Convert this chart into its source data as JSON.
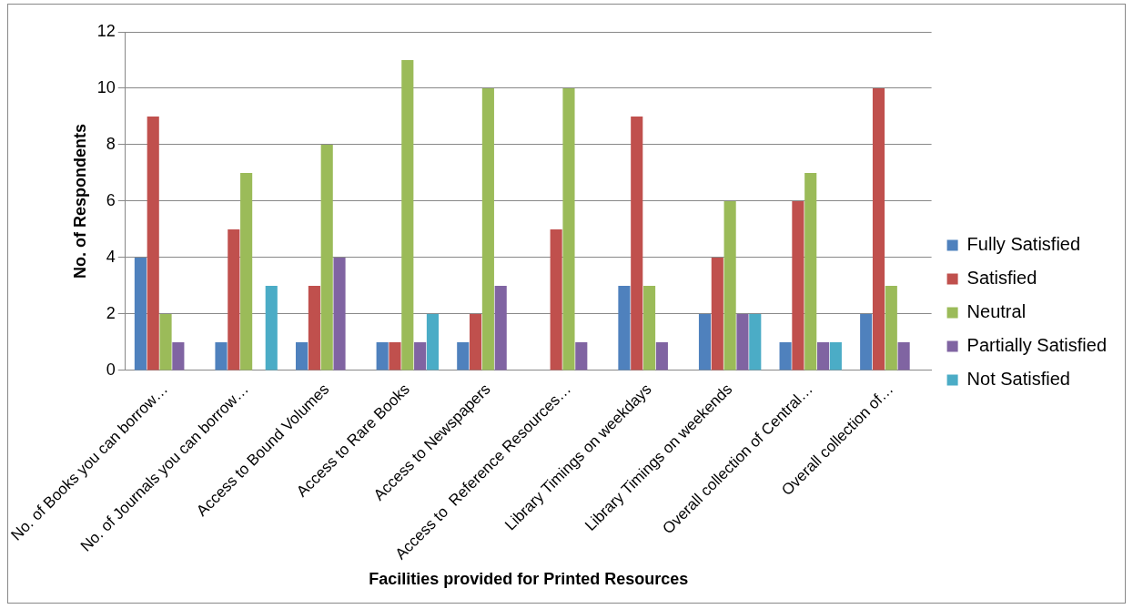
{
  "chart_data": {
    "type": "bar",
    "xlabel": "Facilities provided for Printed Resources",
    "ylabel": "No. of Respondents",
    "categories": [
      "No. of Books you can borrow…",
      "No. of Journals you can borrow…",
      "Access to Bound Volumes",
      "Access to Rare Books",
      "Access to Newspapers",
      "Access to  Reference Resources…",
      "Library Timings on weekdays",
      "Library Timings on weekends",
      "Overall collection of Central…",
      "Overall collection of…"
    ],
    "series": [
      {
        "name": "Fully Satisfied",
        "color": "#4f81bd",
        "values": [
          4,
          1,
          1,
          1,
          1,
          0,
          3,
          2,
          1,
          2
        ]
      },
      {
        "name": "Satisfied",
        "color": "#c0504d",
        "values": [
          9,
          5,
          3,
          1,
          2,
          5,
          9,
          4,
          6,
          10
        ]
      },
      {
        "name": "Neutral",
        "color": "#9bbb59",
        "values": [
          2,
          7,
          8,
          11,
          10,
          10,
          3,
          6,
          7,
          3
        ]
      },
      {
        "name": "Partially Satisfied",
        "color": "#8064a2",
        "values": [
          1,
          0,
          4,
          1,
          3,
          1,
          1,
          2,
          1,
          1
        ]
      },
      {
        "name": "Not Satisfied",
        "color": "#4bacc6",
        "values": [
          0,
          3,
          0,
          2,
          0,
          0,
          0,
          2,
          1,
          0
        ]
      }
    ],
    "ylim": [
      0,
      12
    ],
    "yticks": [
      0,
      2,
      4,
      6,
      8,
      10,
      12
    ],
    "grid": "y",
    "legend": "right"
  }
}
